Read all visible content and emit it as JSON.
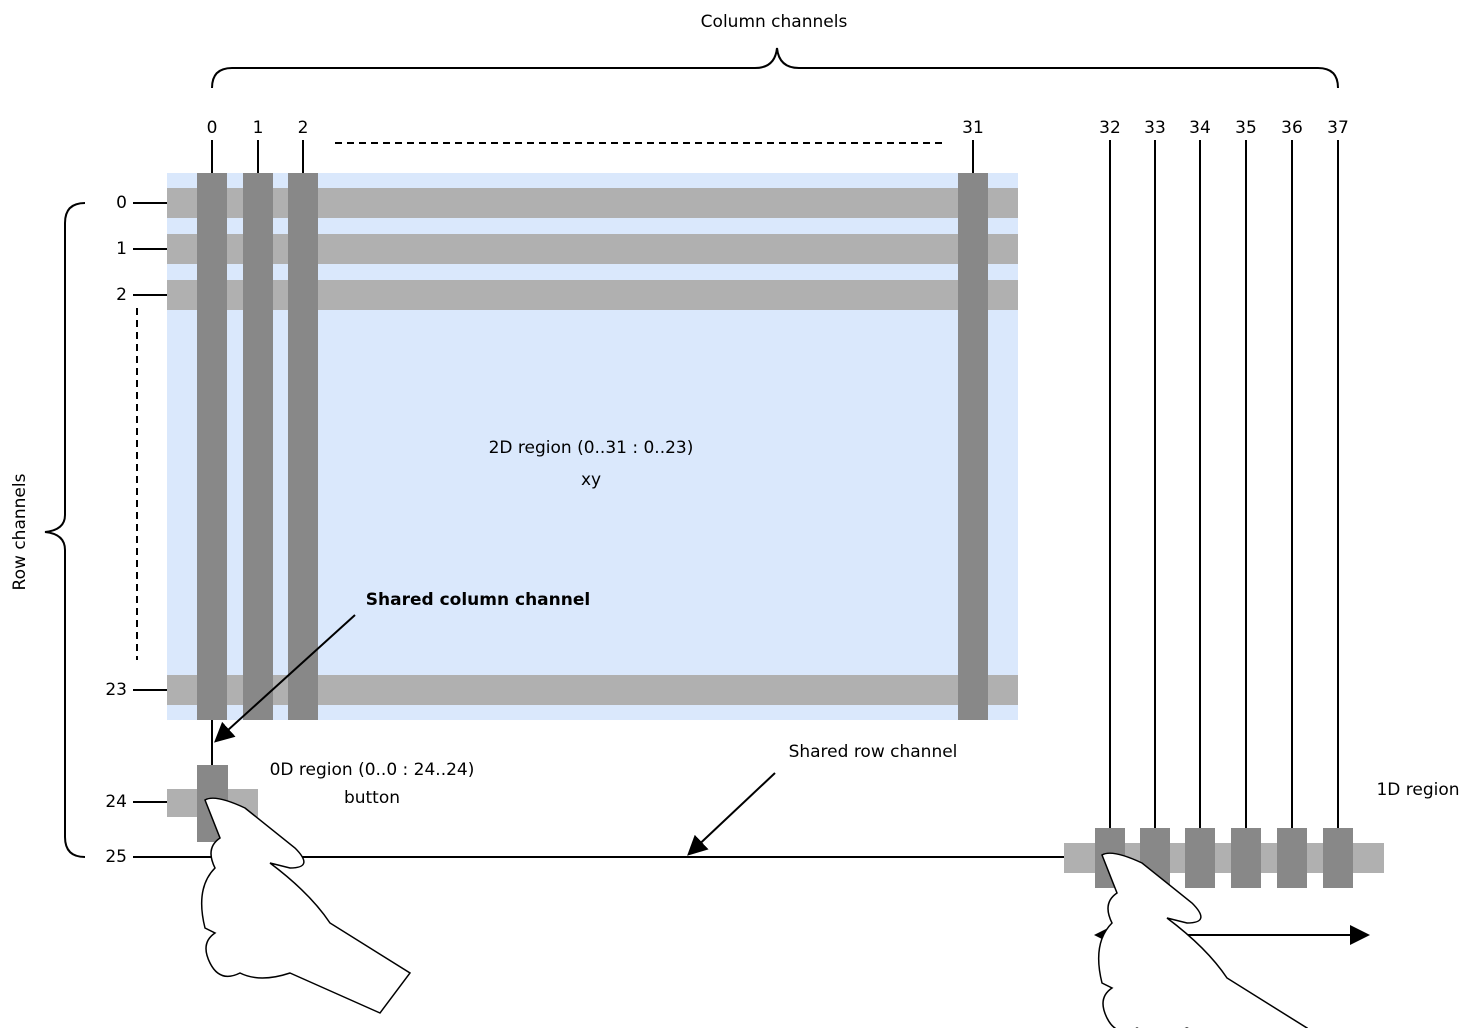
{
  "labels": {
    "column_channels": "Column channels",
    "row_channels": "Row channels",
    "region_2d": "2D region (0..31 : 0..23)",
    "region_2d_sub": "xy",
    "shared_column": "Shared column channel",
    "region_0d": "0D region (0..0 : 24..24)",
    "region_0d_sub": "button",
    "shared_row": "Shared row channel",
    "region_1d": "1D region"
  },
  "column_labels": [
    "0",
    "1",
    "2",
    "31",
    "32",
    "33",
    "34",
    "35",
    "36",
    "37"
  ],
  "row_labels": [
    "0",
    "1",
    "2",
    "23",
    "24",
    "25"
  ]
}
